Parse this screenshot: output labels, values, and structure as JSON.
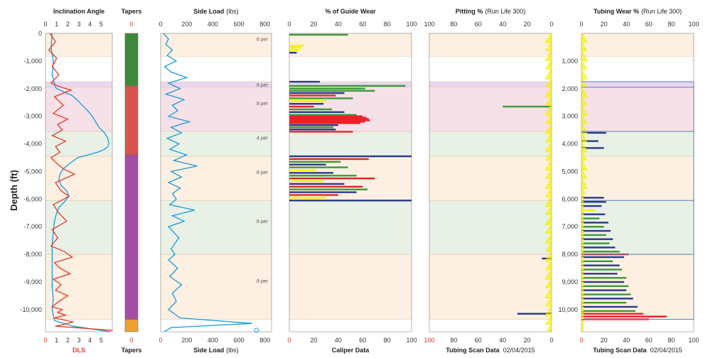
{
  "y_axis_label": "Depth (ft)",
  "colors": {
    "tick": "#c0392b",
    "inclination": "#1a9bd7",
    "dls": "#e03a2a",
    "sideload": "#1a9bd7",
    "band_peach": "#fdf0e2",
    "band_pink": "#f7e1e8",
    "band_green": "#e9f1e6",
    "band_white": "#ffffff",
    "band_lilac": "#e9d7ef",
    "band_edge": "#e0c4a8",
    "blue_line": "#5b7fb8",
    "taper_green": "#3a8a3a",
    "taper_red": "#d9534f",
    "taper_purple": "#a64ca6",
    "taper_orange": "#f0a030",
    "wear_yellow": "#f2f200",
    "wear_green": "#3a9a3a",
    "wear_red": "#e8232a",
    "wear_blue": "#283a8c"
  },
  "depth_labels": [
    "0",
    "-1,000",
    "-2,000",
    "-3,000",
    "-4,000",
    "-5,000",
    "-6,000",
    "-7,000",
    "-8,000",
    "-9,000",
    "-10,000"
  ],
  "depth_labels_pos": [
    "1,000",
    "2,000",
    "3,000",
    "4,000",
    "5,000",
    "6,000",
    "7,000",
    "8,000",
    "9,000",
    "10,000"
  ],
  "chart_data": [
    {
      "id": "inclination",
      "type": "line",
      "title": "Inclination Angle",
      "bottom_label": "DLS",
      "xticks": [
        "0",
        "1",
        "2",
        "3",
        "4",
        "5"
      ],
      "xlim": [
        0,
        6
      ],
      "ylim": [
        0,
        10800
      ],
      "series": [
        {
          "name": "Inclination Angle",
          "x": [
            0.6,
            0.5,
            0.7,
            0.6,
            0.8,
            0.9,
            1.0,
            1.3,
            1.8,
            2.4,
            2.8,
            3.3,
            3.8,
            4.2,
            4.5,
            4.8,
            5.3,
            5.6,
            5.7,
            5.6,
            5.3,
            4.7,
            3.8,
            2.9,
            2.2,
            1.6,
            1.3,
            1.2,
            1.4,
            1.9,
            2.1,
            1.7,
            1.2,
            1.0,
            0.8,
            0.7,
            0.6,
            0.6,
            0.6,
            0.6,
            0.6,
            0.7,
            0.6,
            0.8,
            2.5,
            5.8
          ],
          "y": [
            0,
            500,
            1000,
            1500,
            1800,
            1950,
            2000,
            2050,
            2150,
            2250,
            2400,
            2600,
            2800,
            3000,
            3200,
            3400,
            3600,
            3800,
            4000,
            4100,
            4200,
            4300,
            4400,
            4500,
            4700,
            4900,
            5100,
            5300,
            5500,
            5700,
            5900,
            6100,
            6300,
            6500,
            6800,
            7200,
            7600,
            8000,
            8400,
            8800,
            9200,
            9600,
            10000,
            10400,
            10600,
            10800
          ]
        },
        {
          "name": "DLS",
          "x": [
            0.4,
            0.9,
            0.3,
            1.0,
            0.6,
            1.2,
            0.5,
            1.4,
            2.3,
            0.8,
            1.6,
            0.7,
            2.0,
            1.1,
            1.5,
            0.6,
            1.8,
            0.9,
            1.3,
            0.5,
            1.0,
            1.6,
            2.6,
            0.9,
            1.4,
            2.1,
            0.7,
            1.2,
            1.9,
            0.6,
            1.1,
            0.5,
            1.7,
            2.4,
            0.8,
            1.3,
            2.2,
            0.7,
            1.4,
            0.9,
            2.0,
            1.2,
            0.6,
            1.5,
            1.1,
            1.8,
            0.8,
            2.5,
            0.9,
            6.0
          ],
          "y": [
            0,
            300,
            600,
            900,
            1200,
            1500,
            1800,
            1950,
            2050,
            2300,
            2600,
            2900,
            3100,
            3300,
            3500,
            3700,
            3900,
            4100,
            4300,
            4500,
            4700,
            4900,
            5100,
            5400,
            5700,
            5900,
            6200,
            6500,
            6800,
            7100,
            7400,
            7700,
            7900,
            8100,
            8300,
            8500,
            8700,
            8900,
            9100,
            9300,
            9500,
            9700,
            9900,
            10000,
            10100,
            10200,
            10300,
            10450,
            10600,
            10750
          ]
        }
      ]
    },
    {
      "id": "tapers",
      "type": "bar",
      "title": "Tapers",
      "bottom_label": "Tapers",
      "segments": [
        {
          "from": 0,
          "to": 1900,
          "color": "#3a8a3a"
        },
        {
          "from": 1900,
          "to": 4400,
          "color": "#d9534f"
        },
        {
          "from": 4400,
          "to": 10350,
          "color": "#a64ca6"
        },
        {
          "from": 10350,
          "to": 10800,
          "color": "#f0a030"
        }
      ]
    },
    {
      "id": "sideload",
      "type": "line",
      "title": "Side Load",
      "title_unit": "(lbs)",
      "bottom_label": "Side Load",
      "bottom_unit": "(lbs)",
      "xticks": [
        "0",
        "200",
        "400",
        "600",
        "800"
      ],
      "xlim": [
        0,
        850
      ],
      "ylim": [
        0,
        10800
      ],
      "series": [
        {
          "name": "Side Load",
          "x": [
            20,
            60,
            40,
            90,
            50,
            120,
            30,
            80,
            200,
            60,
            150,
            40,
            180,
            90,
            130,
            60,
            220,
            80,
            160,
            50,
            140,
            70,
            200,
            100,
            280,
            80,
            160,
            60,
            150,
            90,
            120,
            70,
            260,
            90,
            180,
            60,
            140,
            80,
            110,
            60,
            130,
            70,
            160,
            90,
            120,
            60,
            150,
            700,
            80,
            30
          ],
          "y": [
            0,
            200,
            400,
            600,
            800,
            1000,
            1200,
            1400,
            1600,
            1800,
            2000,
            2200,
            2400,
            2600,
            2800,
            3000,
            3200,
            3400,
            3600,
            3800,
            4000,
            4200,
            4400,
            4600,
            4800,
            5000,
            5200,
            5400,
            5600,
            5800,
            6000,
            6200,
            6400,
            6600,
            6800,
            7000,
            7400,
            7800,
            8000,
            8200,
            8500,
            8800,
            9100,
            9400,
            9700,
            10000,
            10300,
            10500,
            10650,
            10800
          ]
        }
      ]
    },
    {
      "id": "guidewear",
      "type": "bar",
      "title": "% of Guide Wear",
      "bottom_label": "Caliper Data",
      "xticks": [
        "0",
        "20",
        "40",
        "60",
        "80",
        "100"
      ],
      "xlim": [
        0,
        100
      ],
      "ylim": [
        0,
        10800
      ],
      "bars": [
        {
          "y": 50,
          "w": 48,
          "c": "#3a9a3a"
        },
        {
          "y": 450,
          "w": 12,
          "c": "#f2f200"
        },
        {
          "y": 520,
          "w": 10,
          "c": "#f2f200"
        },
        {
          "y": 610,
          "w": 8,
          "c": "#f2f200"
        },
        {
          "y": 700,
          "w": 6,
          "c": "#283a8c"
        },
        {
          "y": 1750,
          "w": 25,
          "c": "#283a8c"
        },
        {
          "y": 1900,
          "w": 95,
          "c": "#3a9a3a"
        },
        {
          "y": 2000,
          "w": 62,
          "c": "#3a9a3a"
        },
        {
          "y": 2080,
          "w": 70,
          "c": "#3a9a3a"
        },
        {
          "y": 2160,
          "w": 45,
          "c": "#283a8c"
        },
        {
          "y": 2250,
          "w": 38,
          "c": "#e8232a"
        },
        {
          "y": 2350,
          "w": 52,
          "c": "#3a9a3a"
        },
        {
          "y": 2450,
          "w": 30,
          "c": "#f2f200"
        },
        {
          "y": 2550,
          "w": 28,
          "c": "#283a8c"
        },
        {
          "y": 2650,
          "w": 20,
          "c": "#e8232a"
        },
        {
          "y": 2750,
          "w": 35,
          "c": "#3a9a3a"
        },
        {
          "y": 2850,
          "w": 45,
          "c": "#283a8c"
        },
        {
          "y": 2950,
          "w": 55,
          "c": "#3a9a3a"
        },
        {
          "y": 3000,
          "w": 60,
          "c": "#e8232a"
        },
        {
          "y": 3050,
          "w": 63,
          "c": "#e8232a"
        },
        {
          "y": 3100,
          "w": 65,
          "c": "#e8232a"
        },
        {
          "y": 3150,
          "w": 66,
          "c": "#e8232a"
        },
        {
          "y": 3200,
          "w": 62,
          "c": "#e8232a"
        },
        {
          "y": 3250,
          "w": 58,
          "c": "#e8232a"
        },
        {
          "y": 3320,
          "w": 40,
          "c": "#283a8c"
        },
        {
          "y": 3400,
          "w": 36,
          "c": "#3a9a3a"
        },
        {
          "y": 3480,
          "w": 38,
          "c": "#283a8c"
        },
        {
          "y": 3560,
          "w": 52,
          "c": "#e8232a"
        },
        {
          "y": 4450,
          "w": 100,
          "c": "#283a8c"
        },
        {
          "y": 4550,
          "w": 65,
          "c": "#e8232a"
        },
        {
          "y": 4650,
          "w": 42,
          "c": "#3a9a3a"
        },
        {
          "y": 4750,
          "w": 30,
          "c": "#283a8c"
        },
        {
          "y": 4850,
          "w": 48,
          "c": "#3a9a3a"
        },
        {
          "y": 4950,
          "w": 22,
          "c": "#f2f200"
        },
        {
          "y": 5050,
          "w": 36,
          "c": "#283a8c"
        },
        {
          "y": 5150,
          "w": 55,
          "c": "#3a9a3a"
        },
        {
          "y": 5250,
          "w": 70,
          "c": "#e8232a"
        },
        {
          "y": 5350,
          "w": 28,
          "c": "#f2f200"
        },
        {
          "y": 5450,
          "w": 45,
          "c": "#283a8c"
        },
        {
          "y": 5550,
          "w": 60,
          "c": "#e8232a"
        },
        {
          "y": 5650,
          "w": 64,
          "c": "#3a9a3a"
        },
        {
          "y": 5750,
          "w": 55,
          "c": "#283a8c"
        },
        {
          "y": 5850,
          "w": 40,
          "c": "#e8232a"
        },
        {
          "y": 5950,
          "w": 30,
          "c": "#f2f200"
        },
        {
          "y": 6050,
          "w": 100,
          "c": "#283a8c"
        }
      ]
    },
    {
      "id": "pitting",
      "type": "bar",
      "title": "Pitting %",
      "title_unit": "(Run Life 300)",
      "bottom_label": "Tubing Scan Data",
      "bottom_date": "02/04/2015",
      "xticks": [
        "100",
        "80",
        "60",
        "40",
        "20",
        "0"
      ],
      "xlim": [
        100,
        0
      ],
      "ylim": [
        0,
        10800
      ],
      "bars": [
        {
          "y": 2650,
          "w": 40,
          "c": "#3a9a3a"
        },
        {
          "y": 8150,
          "w": 8,
          "c": "#283a8c"
        },
        {
          "y": 10150,
          "w": 28,
          "c": "#283a8c"
        }
      ]
    },
    {
      "id": "tubingwear",
      "type": "bar",
      "title": "Tubing Wear %",
      "title_unit": "(Run Life 300)",
      "bottom_label": "Tubing Scan Data",
      "bottom_date": "02/04/2015",
      "xticks": [
        "0",
        "20",
        "40",
        "60",
        "80",
        "100"
      ],
      "xlim": [
        0,
        100
      ],
      "ylim": [
        0,
        10800
      ],
      "bars": [
        {
          "y": 3600,
          "w": 22,
          "c": "#283a8c"
        },
        {
          "y": 3900,
          "w": 15,
          "c": "#283a8c"
        },
        {
          "y": 4150,
          "w": 20,
          "c": "#283a8c"
        },
        {
          "y": 5950,
          "w": 20,
          "c": "#283a8c"
        },
        {
          "y": 6100,
          "w": 22,
          "c": "#283a8c"
        },
        {
          "y": 6250,
          "w": 18,
          "c": "#283a8c"
        },
        {
          "y": 6400,
          "w": 12,
          "c": "#f2f200"
        },
        {
          "y": 6550,
          "w": 21,
          "c": "#283a8c"
        },
        {
          "y": 6700,
          "w": 16,
          "c": "#3a9a3a"
        },
        {
          "y": 6850,
          "w": 24,
          "c": "#283a8c"
        },
        {
          "y": 7000,
          "w": 20,
          "c": "#3a9a3a"
        },
        {
          "y": 7150,
          "w": 26,
          "c": "#283a8c"
        },
        {
          "y": 7300,
          "w": 22,
          "c": "#3a9a3a"
        },
        {
          "y": 7450,
          "w": 28,
          "c": "#283a8c"
        },
        {
          "y": 7600,
          "w": 25,
          "c": "#3a9a3a"
        },
        {
          "y": 7750,
          "w": 30,
          "c": "#283a8c"
        },
        {
          "y": 7900,
          "w": 34,
          "c": "#3a9a3a"
        },
        {
          "y": 8000,
          "w": 42,
          "c": "#e8232a"
        },
        {
          "y": 8100,
          "w": 38,
          "c": "#283a8c"
        },
        {
          "y": 8250,
          "w": 28,
          "c": "#3a9a3a"
        },
        {
          "y": 8400,
          "w": 34,
          "c": "#283a8c"
        },
        {
          "y": 8550,
          "w": 36,
          "c": "#3a9a3a"
        },
        {
          "y": 8700,
          "w": 32,
          "c": "#283a8c"
        },
        {
          "y": 8850,
          "w": 40,
          "c": "#3a9a3a"
        },
        {
          "y": 9000,
          "w": 38,
          "c": "#283a8c"
        },
        {
          "y": 9150,
          "w": 42,
          "c": "#3a9a3a"
        },
        {
          "y": 9300,
          "w": 40,
          "c": "#283a8c"
        },
        {
          "y": 9450,
          "w": 44,
          "c": "#3a9a3a"
        },
        {
          "y": 9600,
          "w": 46,
          "c": "#283a8c"
        },
        {
          "y": 9750,
          "w": 40,
          "c": "#3a9a3a"
        },
        {
          "y": 9900,
          "w": 50,
          "c": "#283a8c"
        },
        {
          "y": 10050,
          "w": 48,
          "c": "#3a9a3a"
        },
        {
          "y": 10150,
          "w": 55,
          "c": "#e8232a"
        },
        {
          "y": 10250,
          "w": 76,
          "c": "#e8232a"
        },
        {
          "y": 10350,
          "w": 60,
          "c": "#e8232a"
        }
      ]
    }
  ],
  "bands": [
    {
      "from": 0,
      "to": 850,
      "color": "#fdf0e2",
      "label": "8 per"
    },
    {
      "from": 850,
      "to": 1750,
      "color": "#ffffff",
      "label": ""
    },
    {
      "from": 1750,
      "to": 1950,
      "color": "#e9d7ef",
      "label": "8 per"
    },
    {
      "from": 1950,
      "to": 3550,
      "color": "#f7e1e8",
      "label": "8 per"
    },
    {
      "from": 3550,
      "to": 4450,
      "color": "#e9f1e6",
      "label": "4 per"
    },
    {
      "from": 4450,
      "to": 6050,
      "color": "#fdf0e2",
      "label": "8 per"
    },
    {
      "from": 6050,
      "to": 8000,
      "color": "#e9f1e6",
      "label": "6 per"
    },
    {
      "from": 8000,
      "to": 10350,
      "color": "#fdf0e2",
      "label": "8 per"
    }
  ]
}
